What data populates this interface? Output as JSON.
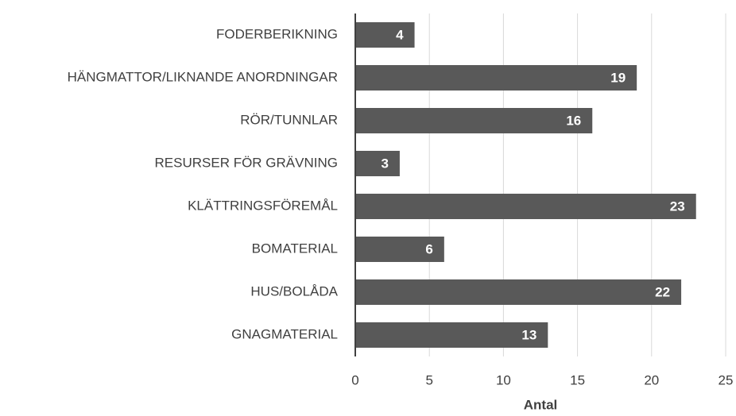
{
  "chart_data": {
    "type": "bar",
    "orientation": "horizontal",
    "xlabel": "Antal",
    "categories": [
      "FODERBERIKNING",
      "HÄNGMATTOR/LIKNANDE ANORDNINGAR",
      "RÖR/TUNNLAR",
      "RESURSER FÖR GRÄVNING",
      "KLÄTTRINGSFÖREMÅL",
      "BOMATERIAL",
      "HUS/BOLÅDA",
      "GNAGMATERIAL"
    ],
    "values": [
      4,
      19,
      16,
      3,
      23,
      6,
      22,
      13
    ],
    "color": "#595959",
    "xlim": [
      0,
      25
    ],
    "xticks": [
      0,
      5,
      10,
      15,
      20,
      25
    ],
    "grid": true
  }
}
